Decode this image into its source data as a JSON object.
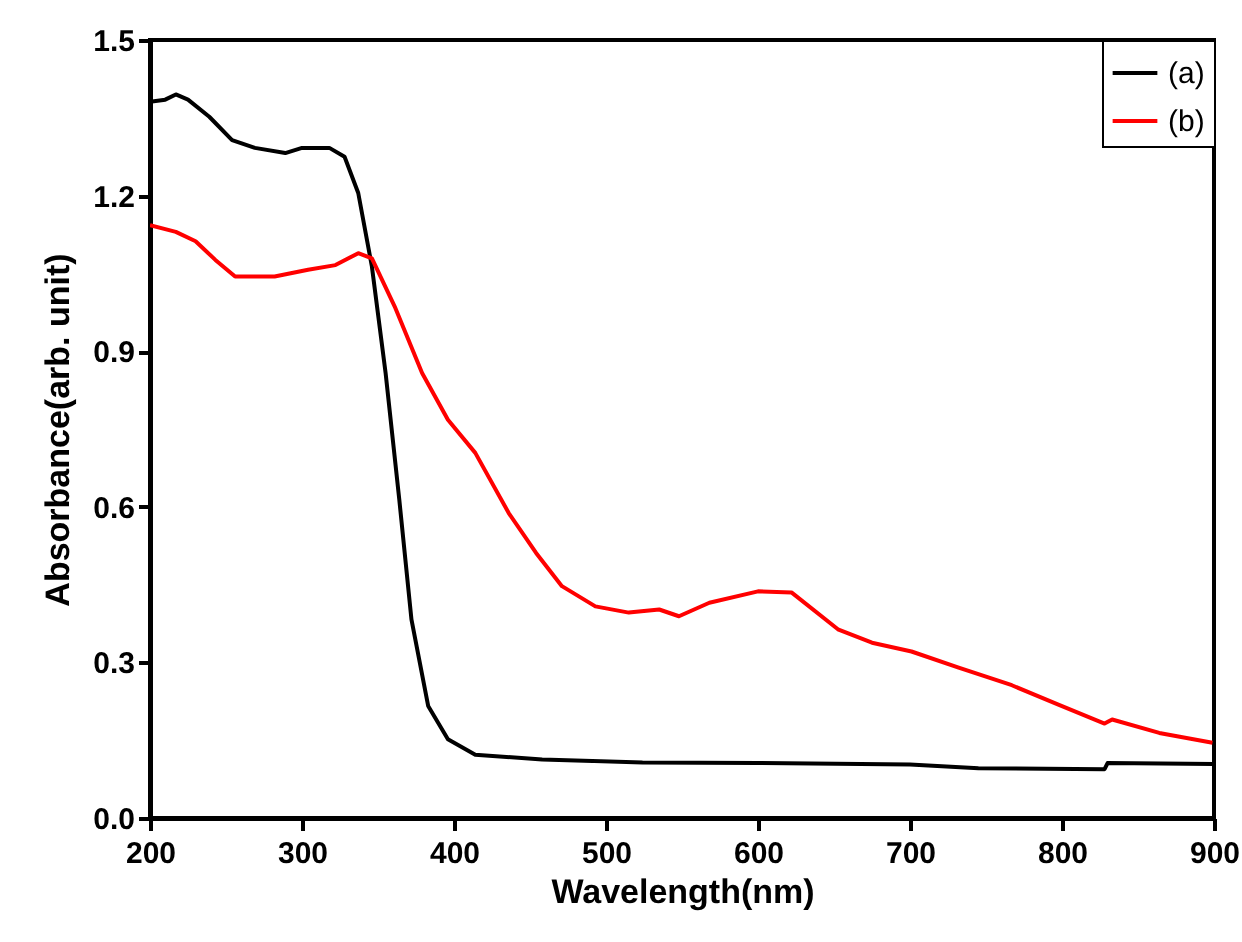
{
  "chart_data": {
    "type": "line",
    "xlabel": "Wavelength(nm)",
    "ylabel": "Absorbance(arb. unit)",
    "xlim": [
      200,
      900
    ],
    "xticks": [
      200,
      300,
      400,
      500,
      600,
      700,
      800,
      900
    ],
    "ylim": [
      0,
      1.5
    ],
    "yticks": [
      {
        "value": 0,
        "label": "0.0"
      },
      0.3,
      0.6,
      0.9,
      1.2,
      1.5
    ],
    "grid": false,
    "legend": "top right",
    "line_style": "solid",
    "marker": "none",
    "series": [
      {
        "name": "(a)",
        "color": "#000000",
        "x": [
          200,
          210,
          217,
          225,
          239,
          254,
          269,
          289,
          300,
          318,
          328,
          337,
          346,
          355,
          364,
          372,
          383,
          396,
          414,
          458,
          524,
          600,
          700,
          745,
          828,
          830,
          900
        ],
        "values": [
          1.381,
          1.385,
          1.395,
          1.385,
          1.352,
          1.307,
          1.292,
          1.282,
          1.292,
          1.292,
          1.275,
          1.205,
          1.063,
          0.858,
          0.614,
          0.383,
          0.216,
          0.152,
          0.122,
          0.113,
          0.107,
          0.106,
          0.103,
          0.096,
          0.094,
          0.106,
          0.104
        ]
      },
      {
        "name": "(b)",
        "color": "#ff0000",
        "x": [
          200,
          217,
          230,
          243,
          256,
          282,
          304,
          322,
          337,
          346,
          361,
          379,
          396,
          414,
          436,
          454,
          471,
          493,
          515,
          535,
          548,
          568,
          600,
          622,
          653,
          675,
          701,
          732,
          767,
          798,
          828,
          833,
          864,
          899
        ],
        "values": [
          1.143,
          1.13,
          1.112,
          1.076,
          1.044,
          1.044,
          1.057,
          1.066,
          1.089,
          1.079,
          0.986,
          0.858,
          0.768,
          0.704,
          0.588,
          0.511,
          0.447,
          0.408,
          0.396,
          0.402,
          0.389,
          0.415,
          0.437,
          0.435,
          0.363,
          0.338,
          0.321,
          0.29,
          0.256,
          0.218,
          0.182,
          0.19,
          0.164,
          0.145
        ]
      }
    ]
  }
}
